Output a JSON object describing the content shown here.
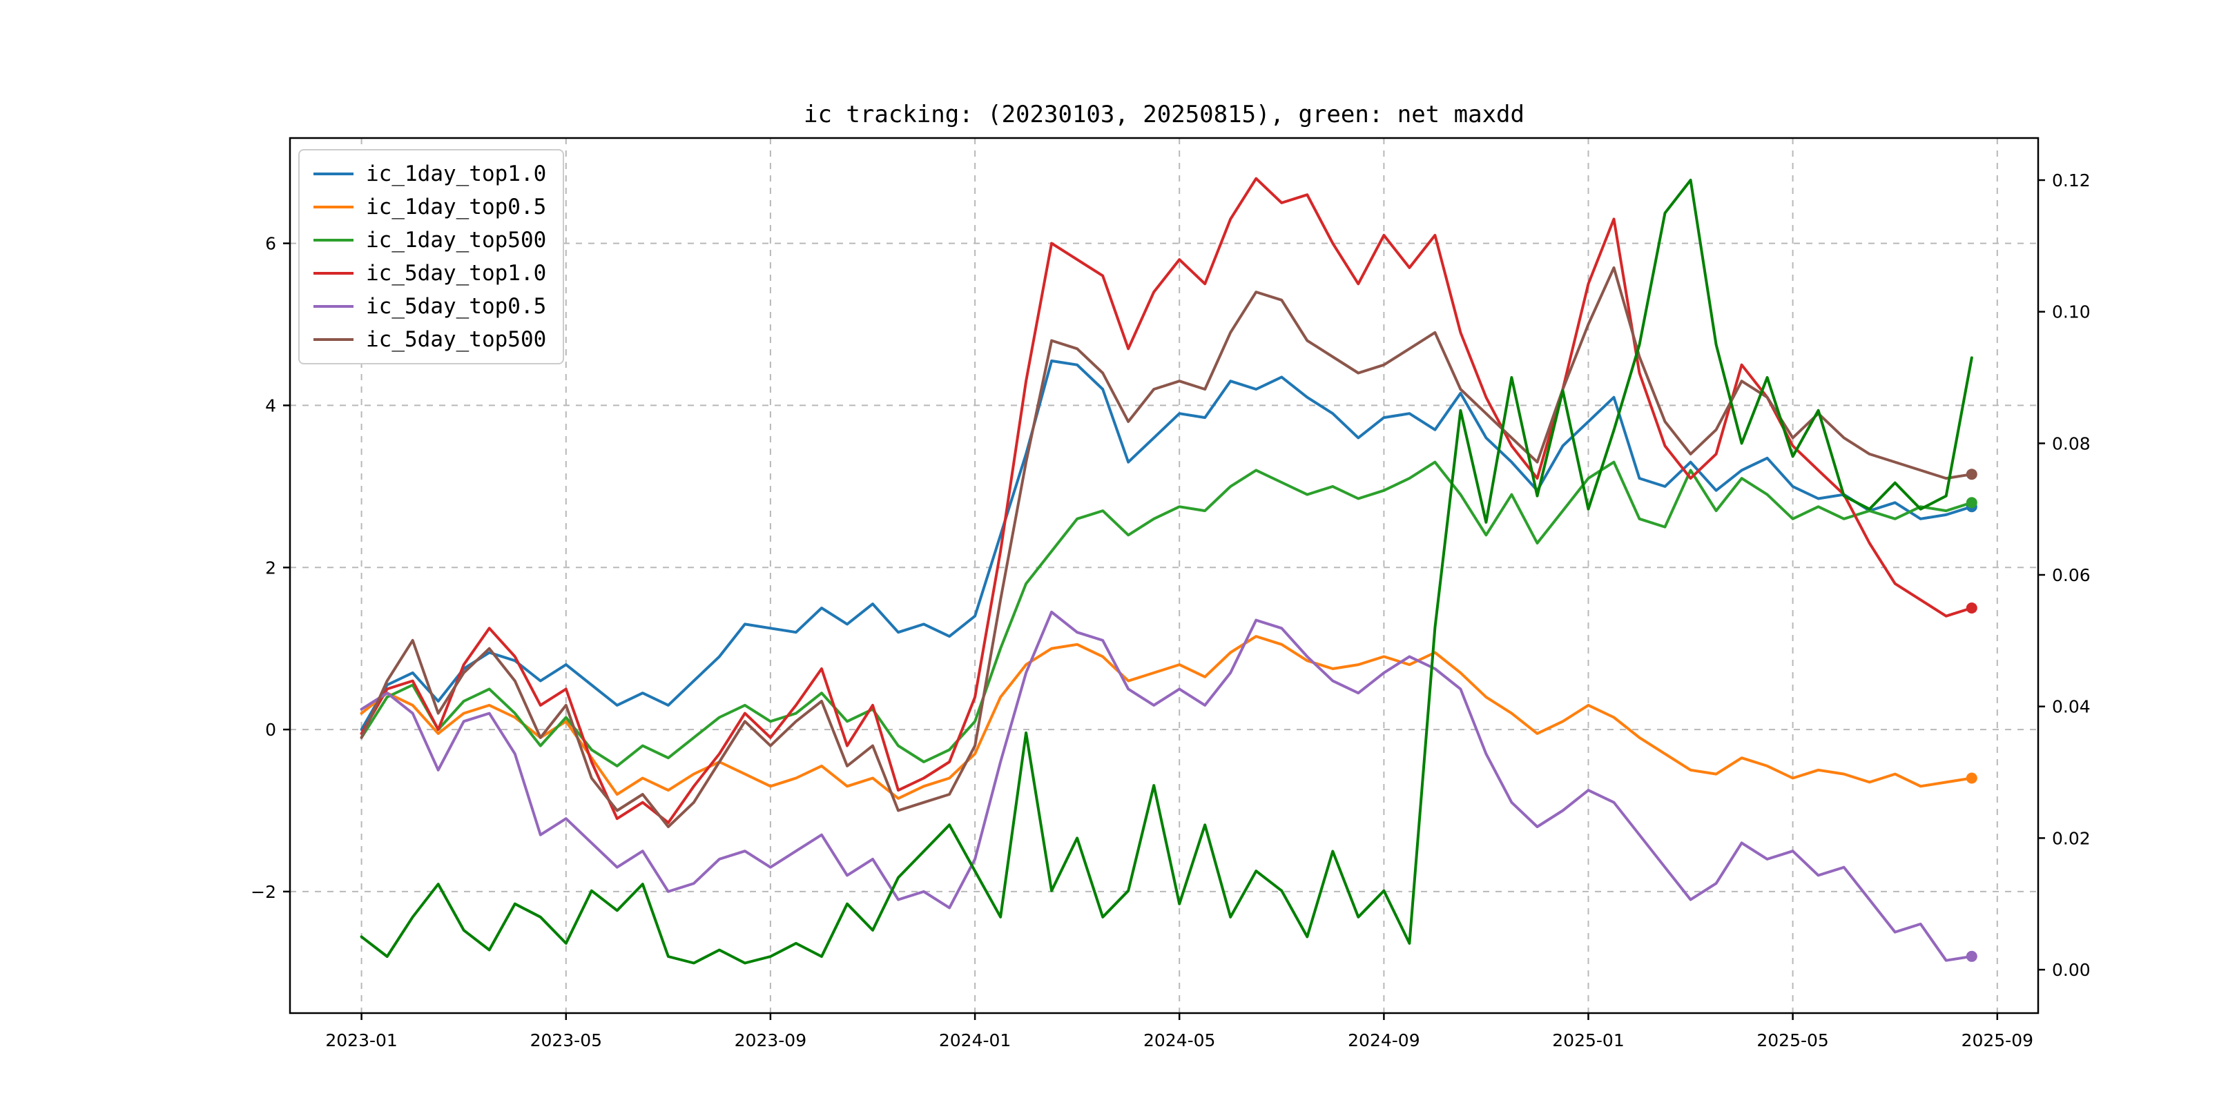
{
  "title": "ic tracking: (20230103, 20250815), green: net maxdd",
  "chart_data": {
    "type": "line",
    "title": "ic tracking: (20230103, 20250815), green: net maxdd",
    "xlabel": "",
    "ylabel_left": "",
    "ylabel_right": "",
    "grid": "dashed",
    "legend_position": "upper-left",
    "x_unit": "months since 2023-01",
    "x_range": [
      -1.4,
      32.8
    ],
    "x_start": 0,
    "x_step": 0.5,
    "x_ticks": [
      {
        "v": 0,
        "label": "2023-01"
      },
      {
        "v": 4,
        "label": "2023-05"
      },
      {
        "v": 8,
        "label": "2023-09"
      },
      {
        "v": 12,
        "label": "2024-01"
      },
      {
        "v": 16,
        "label": "2024-05"
      },
      {
        "v": 20,
        "label": "2024-09"
      },
      {
        "v": 24,
        "label": "2025-01"
      },
      {
        "v": 28,
        "label": "2025-05"
      },
      {
        "v": 32,
        "label": "2025-09"
      }
    ],
    "left_axis": {
      "range": [
        -3.5,
        7.3
      ],
      "ticks": [
        {
          "v": -2,
          "label": "−2"
        },
        {
          "v": 0,
          "label": "0"
        },
        {
          "v": 2,
          "label": "2"
        },
        {
          "v": 4,
          "label": "4"
        },
        {
          "v": 6,
          "label": "6"
        }
      ]
    },
    "right_axis": {
      "range": [
        -0.0066,
        0.1264
      ],
      "ticks": [
        {
          "v": 0.0,
          "label": "0.00"
        },
        {
          "v": 0.02,
          "label": "0.02"
        },
        {
          "v": 0.04,
          "label": "0.04"
        },
        {
          "v": 0.06,
          "label": "0.06"
        },
        {
          "v": 0.08,
          "label": "0.08"
        },
        {
          "v": 0.1,
          "label": "0.10"
        },
        {
          "v": 0.12,
          "label": "0.12"
        }
      ]
    },
    "series": [
      {
        "name": "ic_1day_top1.0",
        "color": "#1f77b4",
        "axis": "left",
        "in_legend": true,
        "end_dot": true,
        "values": [
          0.0,
          0.55,
          0.7,
          0.35,
          0.75,
          0.95,
          0.85,
          0.6,
          0.8,
          0.55,
          0.3,
          0.45,
          0.3,
          0.6,
          0.9,
          1.3,
          1.25,
          1.2,
          1.5,
          1.3,
          1.55,
          1.2,
          1.3,
          1.15,
          1.4,
          2.4,
          3.4,
          4.55,
          4.5,
          4.2,
          3.3,
          3.6,
          3.9,
          3.85,
          4.3,
          4.2,
          4.35,
          4.1,
          3.9,
          3.6,
          3.85,
          3.9,
          3.7,
          4.15,
          3.6,
          3.3,
          2.95,
          3.5,
          3.8,
          4.1,
          3.1,
          3.0,
          3.3,
          2.95,
          3.2,
          3.35,
          3.0,
          2.85,
          2.9,
          2.7,
          2.8,
          2.6,
          2.65,
          2.75
        ]
      },
      {
        "name": "ic_1day_top0.5",
        "color": "#ff7f0e",
        "axis": "left",
        "in_legend": true,
        "end_dot": true,
        "values": [
          0.2,
          0.45,
          0.3,
          -0.05,
          0.2,
          0.3,
          0.15,
          -0.1,
          0.1,
          -0.35,
          -0.8,
          -0.6,
          -0.75,
          -0.55,
          -0.4,
          -0.55,
          -0.7,
          -0.6,
          -0.45,
          -0.7,
          -0.6,
          -0.85,
          -0.7,
          -0.6,
          -0.3,
          0.4,
          0.8,
          1.0,
          1.05,
          0.9,
          0.6,
          0.7,
          0.8,
          0.65,
          0.95,
          1.15,
          1.05,
          0.85,
          0.75,
          0.8,
          0.9,
          0.8,
          0.95,
          0.7,
          0.4,
          0.2,
          -0.05,
          0.1,
          0.3,
          0.15,
          -0.1,
          -0.3,
          -0.5,
          -0.55,
          -0.35,
          -0.45,
          -0.6,
          -0.5,
          -0.55,
          -0.65,
          -0.55,
          -0.7,
          -0.65,
          -0.6
        ]
      },
      {
        "name": "ic_1day_top500",
        "color": "#2ca02c",
        "axis": "left",
        "in_legend": true,
        "end_dot": true,
        "values": [
          -0.1,
          0.4,
          0.55,
          0.0,
          0.35,
          0.5,
          0.2,
          -0.2,
          0.15,
          -0.25,
          -0.45,
          -0.2,
          -0.35,
          -0.1,
          0.15,
          0.3,
          0.1,
          0.2,
          0.45,
          0.1,
          0.25,
          -0.2,
          -0.4,
          -0.25,
          0.1,
          1.0,
          1.8,
          2.2,
          2.6,
          2.7,
          2.4,
          2.6,
          2.75,
          2.7,
          3.0,
          3.2,
          3.05,
          2.9,
          3.0,
          2.85,
          2.95,
          3.1,
          3.3,
          2.9,
          2.4,
          2.9,
          2.3,
          2.7,
          3.1,
          3.3,
          2.6,
          2.5,
          3.2,
          2.7,
          3.1,
          2.9,
          2.6,
          2.75,
          2.6,
          2.7,
          2.6,
          2.75,
          2.7,
          2.8
        ]
      },
      {
        "name": "ic_5day_top1.0",
        "color": "#d62728",
        "axis": "left",
        "in_legend": true,
        "end_dot": true,
        "values": [
          -0.05,
          0.5,
          0.6,
          0.0,
          0.8,
          1.25,
          0.9,
          0.3,
          0.5,
          -0.4,
          -1.1,
          -0.9,
          -1.15,
          -0.7,
          -0.3,
          0.2,
          -0.1,
          0.3,
          0.75,
          -0.2,
          0.3,
          -0.75,
          -0.6,
          -0.4,
          0.4,
          2.2,
          4.3,
          6.0,
          5.8,
          5.6,
          4.7,
          5.4,
          5.8,
          5.5,
          6.3,
          6.8,
          6.5,
          6.6,
          6.0,
          5.5,
          6.1,
          5.7,
          6.1,
          4.9,
          4.1,
          3.5,
          3.1,
          4.2,
          5.5,
          6.3,
          4.4,
          3.5,
          3.1,
          3.4,
          4.5,
          4.1,
          3.5,
          3.2,
          2.9,
          2.3,
          1.8,
          1.6,
          1.4,
          1.5
        ]
      },
      {
        "name": "ic_5day_top0.5",
        "color": "#9467bd",
        "axis": "left",
        "in_legend": true,
        "end_dot": true,
        "values": [
          0.25,
          0.45,
          0.2,
          -0.5,
          0.1,
          0.2,
          -0.3,
          -1.3,
          -1.1,
          -1.4,
          -1.7,
          -1.5,
          -2.0,
          -1.9,
          -1.6,
          -1.5,
          -1.7,
          -1.5,
          -1.3,
          -1.8,
          -1.6,
          -2.1,
          -2.0,
          -2.2,
          -1.6,
          -0.4,
          0.7,
          1.45,
          1.2,
          1.1,
          0.5,
          0.3,
          0.5,
          0.3,
          0.7,
          1.35,
          1.25,
          0.9,
          0.6,
          0.45,
          0.7,
          0.9,
          0.75,
          0.5,
          -0.3,
          -0.9,
          -1.2,
          -1.0,
          -0.75,
          -0.9,
          -1.3,
          -1.7,
          -2.1,
          -1.9,
          -1.4,
          -1.6,
          -1.5,
          -1.8,
          -1.7,
          -2.1,
          -2.5,
          -2.4,
          -2.85,
          -2.8
        ]
      },
      {
        "name": "ic_5day_top500",
        "color": "#8c564b",
        "axis": "left",
        "in_legend": true,
        "end_dot": true,
        "values": [
          -0.1,
          0.6,
          1.1,
          0.2,
          0.7,
          1.0,
          0.6,
          -0.1,
          0.3,
          -0.6,
          -1.0,
          -0.8,
          -1.2,
          -0.9,
          -0.4,
          0.1,
          -0.2,
          0.1,
          0.35,
          -0.45,
          -0.2,
          -1.0,
          -0.9,
          -0.8,
          -0.2,
          1.6,
          3.3,
          4.8,
          4.7,
          4.4,
          3.8,
          4.2,
          4.3,
          4.2,
          4.9,
          5.4,
          5.3,
          4.8,
          4.6,
          4.4,
          4.5,
          4.7,
          4.9,
          4.2,
          3.9,
          3.6,
          3.3,
          4.2,
          5.0,
          5.7,
          4.6,
          3.8,
          3.4,
          3.7,
          4.3,
          4.1,
          3.6,
          3.9,
          3.6,
          3.4,
          3.3,
          3.2,
          3.1,
          3.15
        ]
      },
      {
        "name": "net maxdd",
        "color": "#008000",
        "axis": "right",
        "in_legend": false,
        "end_dot": false,
        "values": [
          0.005,
          0.002,
          0.008,
          0.013,
          0.006,
          0.003,
          0.01,
          0.008,
          0.004,
          0.012,
          0.009,
          0.013,
          0.002,
          0.001,
          0.003,
          0.001,
          0.002,
          0.004,
          0.002,
          0.01,
          0.006,
          0.014,
          0.018,
          0.022,
          0.015,
          0.008,
          0.036,
          0.012,
          0.02,
          0.008,
          0.012,
          0.028,
          0.01,
          0.022,
          0.008,
          0.015,
          0.012,
          0.005,
          0.018,
          0.008,
          0.012,
          0.004,
          0.052,
          0.085,
          0.068,
          0.09,
          0.072,
          0.088,
          0.07,
          0.082,
          0.095,
          0.115,
          0.12,
          0.095,
          0.08,
          0.09,
          0.078,
          0.085,
          0.072,
          0.07,
          0.074,
          0.07,
          0.072,
          0.093
        ]
      }
    ]
  }
}
